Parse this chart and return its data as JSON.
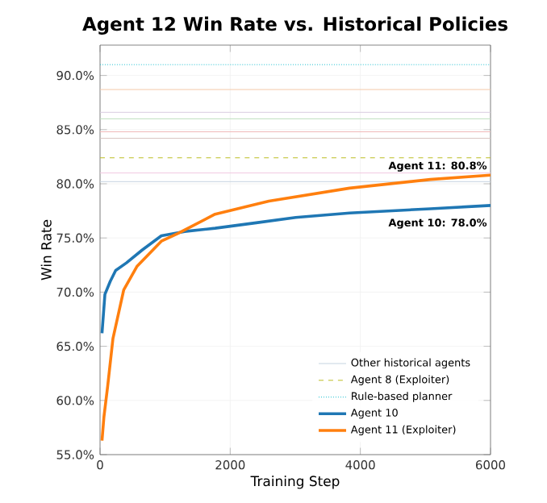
{
  "chart_data": {
    "type": "line",
    "title": "Agent 12 Win Rate vs. Historical Policies",
    "xlabel": "Training Step",
    "ylabel": "Win Rate",
    "xlim": [
      0,
      6000
    ],
    "ylim": [
      55,
      92.8
    ],
    "xticks": [
      0,
      2000,
      4000,
      6000
    ],
    "yticks": [
      {
        "value": 55,
        "label": "55.0%"
      },
      {
        "value": 60,
        "label": "60.0%"
      },
      {
        "value": 65,
        "label": "65.0%"
      },
      {
        "value": 70,
        "label": "70.0%"
      },
      {
        "value": 75,
        "label": "75.0%"
      },
      {
        "value": 80,
        "label": "80.0%"
      },
      {
        "value": 85,
        "label": "85.0%"
      },
      {
        "value": 90,
        "label": "90.0%"
      }
    ],
    "grid": true,
    "legend": "bottom right",
    "series": [
      {
        "name": "Other historical agents",
        "color": "#c5d3e0",
        "line_style": "solid",
        "x": [
          0,
          6000
        ],
        "values": [
          80.2,
          80.2
        ]
      },
      {
        "name": "Agent 8 (Exploiter)",
        "color": "#bcbd22",
        "line_style": "dashed",
        "x": [
          0,
          6000
        ],
        "values": [
          82.4,
          82.4
        ]
      },
      {
        "name": "Rule-based planner",
        "color": "#17becf",
        "line_style": "dotted",
        "x": [
          0,
          6000
        ],
        "values": [
          91.0,
          91.0
        ]
      },
      {
        "color": "#f5c9a8",
        "line_style": "solid",
        "x": [
          0,
          6000
        ],
        "values": [
          88.7,
          88.7
        ]
      },
      {
        "color": "#d8cce0",
        "line_style": "solid",
        "x": [
          0,
          6000
        ],
        "values": [
          86.6,
          86.6
        ]
      },
      {
        "color": "#bfe0bf",
        "line_style": "solid",
        "x": [
          0,
          6000
        ],
        "values": [
          86.0,
          86.0
        ]
      },
      {
        "color": "#f0b8b8",
        "line_style": "solid",
        "x": [
          0,
          6000
        ],
        "values": [
          84.8,
          84.8
        ]
      },
      {
        "color": "#d9c4c0",
        "line_style": "solid",
        "x": [
          0,
          6000
        ],
        "values": [
          84.2,
          84.2
        ]
      },
      {
        "color": "#f2c8e2",
        "line_style": "solid",
        "x": [
          0,
          6000
        ],
        "values": [
          81.0,
          81.0
        ]
      },
      {
        "name": "Agent 10",
        "color": "#1f77b4",
        "x": [
          30,
          75,
          157,
          240,
          405,
          650,
          942,
          1300,
          1768,
          2400,
          3008,
          3835,
          5075,
          6000
        ],
        "values": [
          66.2,
          69.8,
          71.0,
          72.0,
          72.7,
          73.9,
          75.2,
          75.6,
          75.9,
          76.4,
          76.9,
          77.3,
          77.7,
          78.0
        ]
      },
      {
        "name": "Agent 11 (Exploiter)",
        "color": "#ff7f0e",
        "x": [
          30,
          60,
          117,
          198,
          364,
          570,
          942,
          1190,
          1768,
          2595,
          3835,
          5075,
          6000
        ],
        "values": [
          56.3,
          58.5,
          61.3,
          65.7,
          70.2,
          72.4,
          74.7,
          75.4,
          77.2,
          78.4,
          79.6,
          80.4,
          80.8
        ]
      }
    ],
    "annotations": [
      {
        "text": "Agent 11: 80.8%",
        "x": 6000,
        "y": 80.8
      },
      {
        "text": "Agent 10: 78.0%",
        "x": 6000,
        "y": 78.0
      }
    ]
  }
}
